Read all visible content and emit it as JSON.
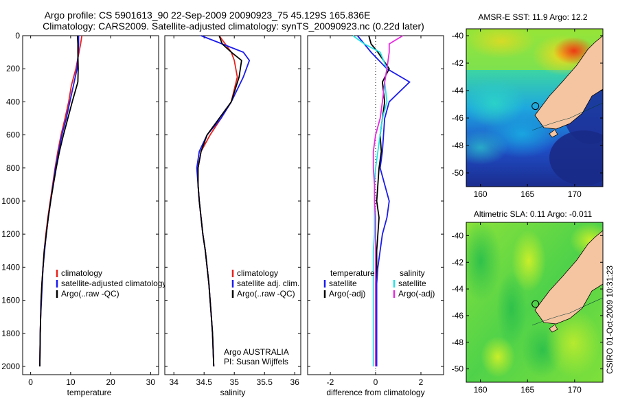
{
  "header": {
    "line1": "Argo profile: CS 5901613_90 22-Sep-2009 20090923_75 45.129S 165.836E",
    "line2": "Climatology: CARS2009. Satellite-adjusted climatology: synTS_20090923.nc (0.22d later)"
  },
  "credit": "CSIRO 01-Oct-2009 10:31:23",
  "colors": {
    "climatology": "#e8201c",
    "satellite": "#1a1aee",
    "argo": "#000000",
    "salinity_satellite": "#22e6e6",
    "salinity_argo": "#e829e0",
    "land": "#f5c4a0",
    "coast": "#000000"
  },
  "chart_data": [
    {
      "type": "line",
      "xlabel": "temperature",
      "ylabel": "",
      "xlim": [
        -2,
        32
      ],
      "ylim": [
        2050,
        0
      ],
      "xticks": [
        0,
        10,
        20,
        30
      ],
      "yticks": [
        0,
        200,
        400,
        600,
        800,
        1000,
        1200,
        1400,
        1600,
        1800,
        2000
      ],
      "legend": {
        "placement": "lower-right",
        "entries": [
          "climatology",
          "satellite-adjusted climatology",
          "Argo(..raw -QC)"
        ]
      },
      "series": [
        {
          "name": "climatology",
          "color_key": "climatology",
          "x": [
            12.8,
            12.5,
            12.1,
            11.3,
            10.2,
            9.5,
            8.6,
            7.6,
            6.8,
            6.1,
            5.5,
            4.9,
            4.3,
            3.8,
            3.4,
            3.1,
            2.8,
            2.6,
            2.5,
            2.4,
            2.3
          ],
          "y": [
            0,
            50,
            100,
            200,
            300,
            400,
            500,
            600,
            700,
            800,
            900,
            1000,
            1100,
            1200,
            1300,
            1400,
            1500,
            1600,
            1700,
            1800,
            2000
          ]
        },
        {
          "name": "satellite-adjusted climatology",
          "color_key": "satellite",
          "x": [
            12.0,
            12.0,
            11.9,
            11.6,
            10.7,
            9.8,
            8.9,
            7.8,
            7.0,
            6.2,
            5.6,
            5.0,
            4.4,
            3.9,
            3.5,
            3.1,
            2.9,
            2.7,
            2.5,
            2.4,
            2.3
          ],
          "y": [
            0,
            50,
            100,
            200,
            300,
            400,
            500,
            600,
            700,
            800,
            900,
            1000,
            1100,
            1200,
            1300,
            1400,
            1500,
            1600,
            1700,
            1800,
            2000
          ]
        },
        {
          "name": "Argo(..raw -QC)",
          "color_key": "argo",
          "x": [
            11.7,
            11.8,
            11.8,
            11.9,
            11.8,
            10.4,
            9.3,
            8.2,
            7.2,
            6.4,
            5.7,
            5.0,
            4.4,
            3.9,
            3.4,
            3.1,
            2.8,
            2.6,
            2.5,
            2.4,
            2.3
          ],
          "y": [
            0,
            50,
            100,
            200,
            280,
            400,
            500,
            600,
            700,
            800,
            900,
            1000,
            1100,
            1200,
            1300,
            1400,
            1500,
            1600,
            1700,
            1800,
            2000
          ]
        }
      ]
    },
    {
      "type": "line",
      "xlabel": "salinity",
      "ylabel": "",
      "xlim": [
        33.85,
        36.1
      ],
      "ylim": [
        2050,
        0
      ],
      "xticks": [
        34,
        34.5,
        35,
        35.5,
        36
      ],
      "xtick_labels": [
        "34",
        "34.5",
        "35",
        "35.5",
        "36"
      ],
      "legend": {
        "placement": "lower-right",
        "entries": [
          "climatology",
          "satellite adj. clim.",
          "Argo(..raw -QC)"
        ]
      },
      "annotation": {
        "lines": [
          "Argo AUSTRALIA",
          "PI: Susan Wijffels"
        ]
      },
      "series": [
        {
          "name": "climatology",
          "color_key": "climatology",
          "x": [
            34.75,
            34.85,
            34.95,
            35.0,
            35.05,
            34.95,
            34.78,
            34.6,
            34.45,
            34.4,
            34.4,
            34.42,
            34.45,
            34.48,
            34.52,
            34.55,
            34.58,
            34.6,
            34.62,
            34.64,
            34.66
          ],
          "y": [
            0,
            50,
            100,
            150,
            250,
            400,
            500,
            600,
            700,
            800,
            900,
            1000,
            1100,
            1200,
            1300,
            1400,
            1500,
            1600,
            1700,
            1800,
            2000
          ]
        },
        {
          "name": "satellite adj. clim.",
          "color_key": "satellite",
          "x": [
            34.45,
            34.8,
            35.15,
            35.25,
            35.15,
            34.95,
            34.78,
            34.55,
            34.42,
            34.38,
            34.4,
            34.42,
            34.45,
            34.48,
            34.52,
            34.55,
            34.58,
            34.6,
            34.62,
            34.64,
            34.66
          ],
          "y": [
            0,
            50,
            100,
            150,
            250,
            400,
            500,
            600,
            700,
            800,
            900,
            1000,
            1100,
            1200,
            1300,
            1400,
            1500,
            1600,
            1700,
            1800,
            2000
          ]
        },
        {
          "name": "Argo(..raw -QC)",
          "color_key": "argo",
          "x": [
            34.75,
            34.8,
            34.95,
            35.12,
            35.08,
            34.95,
            34.75,
            34.55,
            34.45,
            34.4,
            34.4,
            34.42,
            34.45,
            34.48,
            34.52,
            34.55,
            34.58,
            34.6,
            34.62,
            34.64,
            34.66
          ],
          "y": [
            0,
            50,
            100,
            150,
            250,
            400,
            500,
            600,
            700,
            800,
            900,
            1000,
            1100,
            1200,
            1300,
            1400,
            1500,
            1600,
            1700,
            1800,
            2000
          ]
        }
      ]
    },
    {
      "type": "line",
      "xlabel": "difference from climatology",
      "ylabel": "",
      "xlim": [
        -3,
        3
      ],
      "ylim": [
        2050,
        0
      ],
      "xticks": [
        -2,
        0,
        2
      ],
      "legend": {
        "placement": "lower-center",
        "groups": [
          {
            "title": "temperature",
            "entries": [
              "satellite",
              "Argo(-adj)"
            ]
          },
          {
            "title": "salinity",
            "entries": [
              "satellite",
              "Argo(-adj)"
            ]
          }
        ]
      },
      "series": [
        {
          "name": "satellite",
          "group": "temperature",
          "color_key": "satellite",
          "x": [
            -0.8,
            -0.5,
            -0.2,
            0.5,
            1.5,
            0.6,
            0.4,
            0.35,
            0.3,
            0.2,
            0.4,
            0.6,
            0.5,
            0.3,
            0.2,
            0.1,
            0.05,
            0.05,
            0.05,
            0.05,
            0.05
          ],
          "y": [
            0,
            50,
            100,
            200,
            280,
            400,
            500,
            600,
            700,
            800,
            900,
            1000,
            1100,
            1200,
            1300,
            1400,
            1500,
            1600,
            1700,
            1800,
            2000
          ]
        },
        {
          "name": "Argo(-adj)",
          "group": "temperature",
          "color_key": "argo",
          "x": [
            -0.3,
            -0.2,
            0.1,
            0.6,
            0.3,
            0.4,
            0.3,
            0.2,
            0.25,
            0.15,
            0.1,
            0.05,
            0.15,
            0.1,
            0.05,
            0.05,
            0.0,
            0.0,
            0.0,
            0.0,
            0.0
          ],
          "y": [
            0,
            50,
            100,
            200,
            280,
            400,
            500,
            600,
            700,
            800,
            900,
            1000,
            1100,
            1200,
            1300,
            1400,
            1500,
            1600,
            1700,
            1800,
            2000
          ]
        },
        {
          "name": "satellite",
          "group": "salinity",
          "color_key": "salinity_satellite",
          "x": [
            -1.0,
            -0.5,
            0.2,
            0.5,
            0.4,
            0.5,
            0.3,
            0.2,
            0.1,
            0.0,
            -0.05,
            -0.05,
            -0.05,
            -0.05,
            -0.1,
            -0.1,
            -0.1,
            -0.1,
            -0.1,
            -0.1,
            -0.1
          ],
          "y": [
            0,
            50,
            100,
            200,
            280,
            400,
            500,
            600,
            700,
            800,
            900,
            1000,
            1100,
            1200,
            1300,
            1400,
            1500,
            1600,
            1700,
            1800,
            2000
          ]
        },
        {
          "name": "Argo(-adj)",
          "group": "salinity",
          "color_key": "salinity_argo",
          "x": [
            1.2,
            0.6,
            0.6,
            0.5,
            0.4,
            0.3,
            0.2,
            0.0,
            -0.1,
            -0.1,
            -0.05,
            -0.05,
            0.0,
            0.0,
            0.0,
            0.0,
            0.0,
            0.0,
            0.0,
            0.0,
            0.0
          ],
          "y": [
            0,
            50,
            100,
            200,
            280,
            400,
            500,
            600,
            700,
            800,
            900,
            1000,
            1100,
            1200,
            1300,
            1400,
            1500,
            1600,
            1700,
            1800,
            2000
          ]
        }
      ]
    },
    {
      "type": "heatmap",
      "title": "AMSR-E SST: 11.9 Argo: 12.2",
      "xlim": [
        158.5,
        173
      ],
      "ylim": [
        -51,
        -39.5
      ],
      "xticks": [
        160,
        165,
        170
      ],
      "yticks": [
        -40,
        -42,
        -44,
        -46,
        -48,
        -50
      ],
      "marker": {
        "lon": 165.836,
        "lat": -45.129
      }
    },
    {
      "type": "heatmap",
      "title": "Altimetric SLA: 0.11 Argo: -0.011",
      "xlim": [
        158.5,
        173
      ],
      "ylim": [
        -51,
        -39
      ],
      "xticks": [
        160,
        165,
        170
      ],
      "yticks": [
        -40,
        -42,
        -44,
        -46,
        -48,
        -50
      ],
      "marker": {
        "lon": 165.836,
        "lat": -45.129
      }
    }
  ]
}
